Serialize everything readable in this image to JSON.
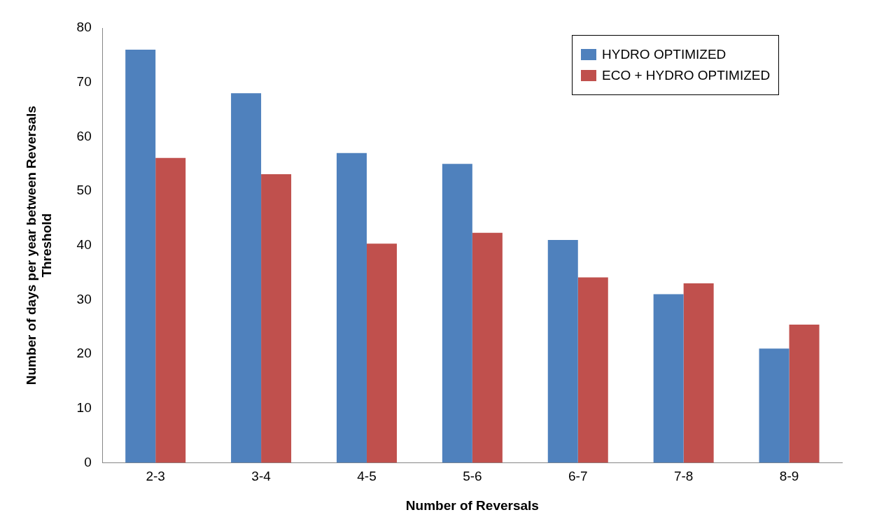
{
  "chart_data": {
    "type": "bar",
    "xlabel": "Number of Reversals",
    "ylabel": "Number of days per year between Reversals\nThreshold",
    "categories": [
      "2-3",
      "3-4",
      "4-5",
      "5-6",
      "6-7",
      "7-8",
      "8-9"
    ],
    "series": [
      {
        "name": "HYDRO OPTIMIZED",
        "color": "#4f81bd",
        "values": [
          76,
          68,
          57,
          55,
          41,
          31,
          21
        ]
      },
      {
        "name": "ECO + HYDRO OPTIMIZED",
        "color": "#c0504d",
        "values": [
          56.1,
          53.1,
          40.3,
          42.3,
          34.1,
          33,
          25.4
        ]
      }
    ],
    "ylim": [
      0,
      80
    ],
    "yticks": [
      0,
      10,
      20,
      30,
      40,
      50,
      60,
      70,
      80
    ],
    "grid": false,
    "legend": "top right"
  }
}
